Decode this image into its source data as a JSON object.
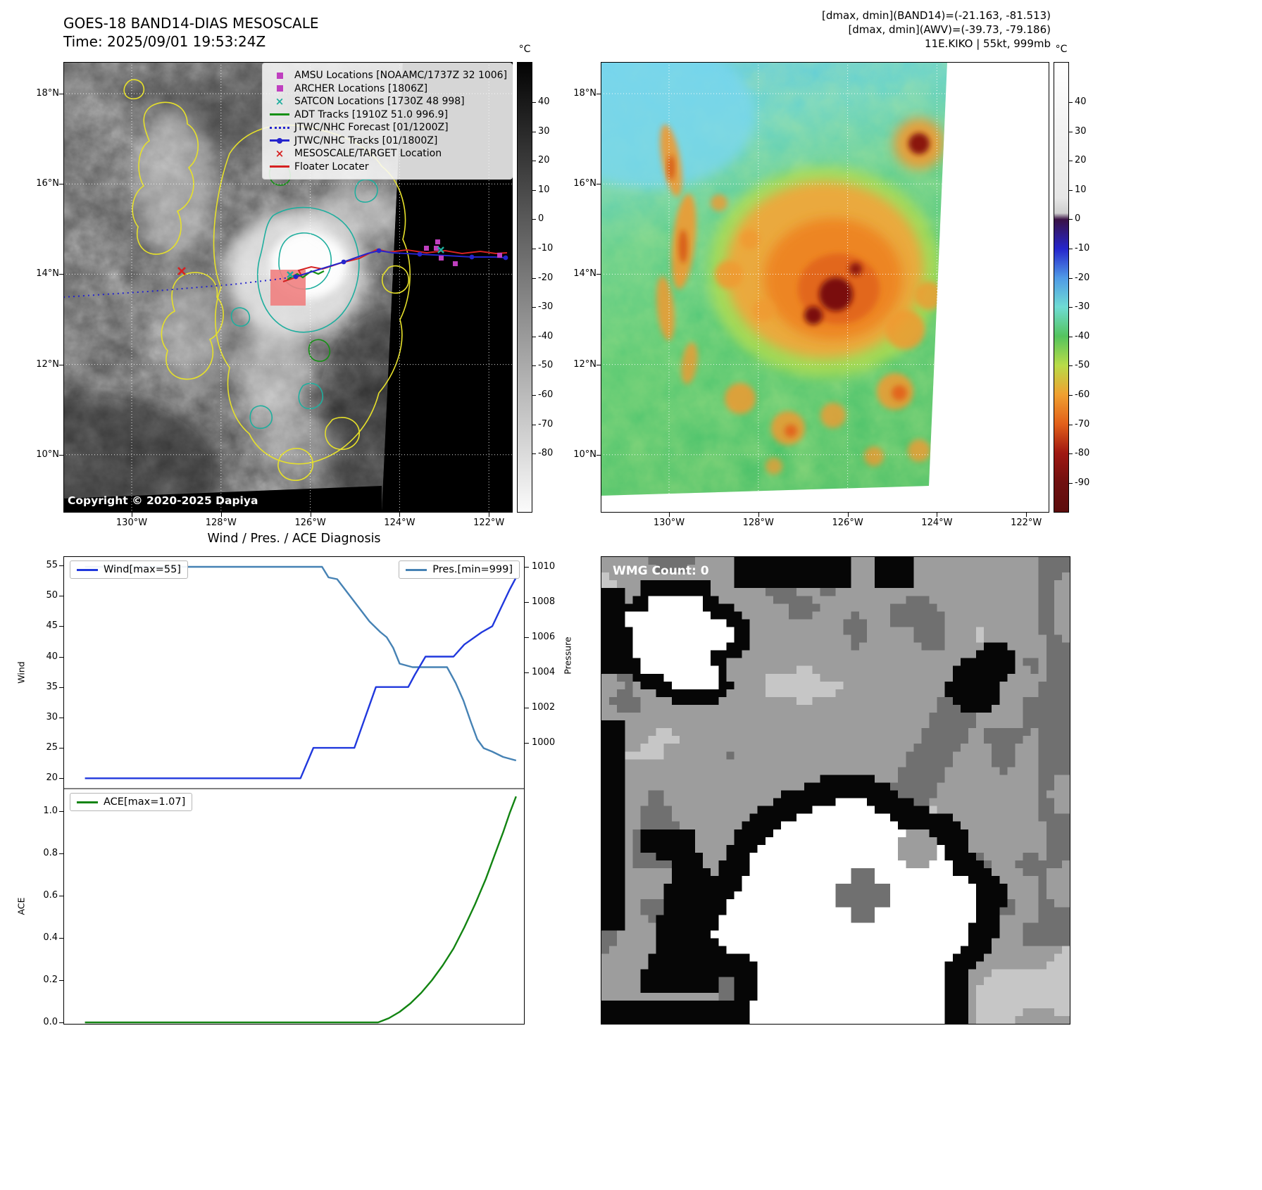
{
  "band14": {
    "title": "GOES-18 BAND14-DIAS MESOSCALE",
    "time": "Time: 2025/09/01 19:53:24Z",
    "copyright": "Copyright © 2020-2025 Dapiya",
    "colorbar_unit": "°C",
    "colorbar_ticks": [
      "40",
      "30",
      "20",
      "10",
      "0",
      "-10",
      "-20",
      "-30",
      "-40",
      "-50",
      "-60",
      "-70",
      "-80"
    ],
    "lat_ticks": [
      "18°N",
      "16°N",
      "14°N",
      "12°N",
      "10°N"
    ],
    "lon_ticks": [
      "130°W",
      "128°W",
      "126°W",
      "124°W",
      "122°W"
    ],
    "legend": [
      {
        "label": "AMSU Locations [NOAAMC/1737Z 32 1006]",
        "marker": "square",
        "color": "#bf3fbf"
      },
      {
        "label": "ARCHER Locations [1806Z]",
        "marker": "square",
        "color": "#bf3fbf"
      },
      {
        "label": "SATCON Locations [1730Z 48 998]",
        "marker": "x",
        "color": "#1fae9e"
      },
      {
        "label": "ADT Tracks [1910Z 51.0 996.9]",
        "marker": "line",
        "color": "#159015"
      },
      {
        "label": "JTWC/NHC Forecast [01/1200Z]",
        "marker": "dotted",
        "color": "#2525cc"
      },
      {
        "label": "JTWC/NHC Tracks [01/1800Z]",
        "marker": "linedot",
        "color": "#2525cc"
      },
      {
        "label": "MESOSCALE/TARGET Location",
        "marker": "x",
        "color": "#d62222"
      },
      {
        "label": "Floater Locater",
        "marker": "line",
        "color": "#d62222"
      }
    ]
  },
  "awv": {
    "header_lines": [
      "[dmax, dmin](BAND14)=(-21.163, -81.513)",
      "[dmax, dmin](AWV)=(-39.73, -79.186)",
      "11E.KIKO | 55kt, 999mb"
    ],
    "colorbar_unit": "°C",
    "colorbar_ticks": [
      "40",
      "30",
      "20",
      "10",
      "0",
      "-10",
      "-20",
      "-30",
      "-40",
      "-50",
      "-60",
      "-70",
      "-80",
      "-90"
    ],
    "lat_ticks": [
      "18°N",
      "16°N",
      "14°N",
      "12°N",
      "10°N"
    ],
    "lon_ticks": [
      "130°W",
      "128°W",
      "126°W",
      "124°W",
      "122°W"
    ]
  },
  "wmg": {
    "count_label": "WMG Count: 0"
  },
  "chart_data": [
    {
      "type": "line",
      "title": "Wind / Pres. / ACE Diagnosis",
      "subplot": "wind-pressure",
      "xlim": [
        -0.05,
        1.02
      ],
      "x_note": "normalized time axis, no tick labels shown",
      "series": [
        {
          "name": "Wind",
          "legend_label": "Wind[max=55]",
          "ylabel": "Wind",
          "axis": "left",
          "color": "#2038dd",
          "ylim": [
            18.3,
            56.5
          ],
          "max": 55,
          "ytick_labels": [
            "55",
            "50",
            "45",
            "40",
            "35",
            "30",
            "25",
            "20"
          ],
          "points": [
            [
              0,
              20
            ],
            [
              0.1,
              20
            ],
            [
              0.2,
              20
            ],
            [
              0.3,
              20
            ],
            [
              0.4,
              20
            ],
            [
              0.5,
              20
            ],
            [
              0.53,
              25
            ],
            [
              0.625,
              25
            ],
            [
              0.65,
              30
            ],
            [
              0.675,
              35
            ],
            [
              0.75,
              35
            ],
            [
              0.765,
              37
            ],
            [
              0.79,
              40
            ],
            [
              0.855,
              40
            ],
            [
              0.88,
              42
            ],
            [
              0.92,
              44
            ],
            [
              0.945,
              45
            ],
            [
              0.965,
              48
            ],
            [
              0.985,
              51
            ],
            [
              1,
              53
            ]
          ]
        },
        {
          "name": "Pres.",
          "legend_label": "Pres.[min=999]",
          "ylabel": "Pressure",
          "axis": "right",
          "color": "#4682b4",
          "ylim": [
            997.4,
            1010.6
          ],
          "min": 999,
          "ytick_labels": [
            "1010",
            "1008",
            "1006",
            "1004",
            "1002",
            "1000"
          ],
          "points": [
            [
              0,
              1010
            ],
            [
              0.1,
              1010
            ],
            [
              0.2,
              1010
            ],
            [
              0.3,
              1010
            ],
            [
              0.4,
              1010
            ],
            [
              0.5,
              1010
            ],
            [
              0.55,
              1010
            ],
            [
              0.565,
              1009.4
            ],
            [
              0.585,
              1009.3
            ],
            [
              0.61,
              1008.5
            ],
            [
              0.635,
              1007.7
            ],
            [
              0.66,
              1006.9
            ],
            [
              0.685,
              1006.3
            ],
            [
              0.7,
              1006
            ],
            [
              0.715,
              1005.4
            ],
            [
              0.73,
              1004.5
            ],
            [
              0.76,
              1004.3
            ],
            [
              0.84,
              1004.3
            ],
            [
              0.86,
              1003.4
            ],
            [
              0.878,
              1002.4
            ],
            [
              0.895,
              1001.2
            ],
            [
              0.91,
              1000.2
            ],
            [
              0.925,
              999.7
            ],
            [
              0.945,
              999.5
            ],
            [
              0.97,
              999.2
            ],
            [
              1,
              999
            ]
          ]
        }
      ]
    },
    {
      "type": "line",
      "subplot": "ace",
      "xlim": [
        -0.05,
        1.02
      ],
      "series": [
        {
          "name": "ACE",
          "legend_label": "ACE[max=1.07]",
          "ylabel": "ACE",
          "axis": "left",
          "color": "#128412",
          "ylim": [
            -0.01,
            1.107
          ],
          "max": 1.07,
          "ytick_labels": [
            "1.0",
            "0.8",
            "0.6",
            "0.4",
            "0.2",
            "0.0"
          ],
          "points": [
            [
              0,
              0
            ],
            [
              0.1,
              0
            ],
            [
              0.2,
              0
            ],
            [
              0.3,
              0
            ],
            [
              0.4,
              0
            ],
            [
              0.5,
              0
            ],
            [
              0.6,
              0
            ],
            [
              0.68,
              0
            ],
            [
              0.705,
              0.02
            ],
            [
              0.73,
              0.05
            ],
            [
              0.755,
              0.09
            ],
            [
              0.78,
              0.14
            ],
            [
              0.805,
              0.2
            ],
            [
              0.83,
              0.27
            ],
            [
              0.855,
              0.35
            ],
            [
              0.88,
              0.45
            ],
            [
              0.905,
              0.56
            ],
            [
              0.93,
              0.68
            ],
            [
              0.95,
              0.79
            ],
            [
              0.97,
              0.9
            ],
            [
              0.985,
              0.99
            ],
            [
              1,
              1.07
            ]
          ]
        }
      ]
    }
  ]
}
